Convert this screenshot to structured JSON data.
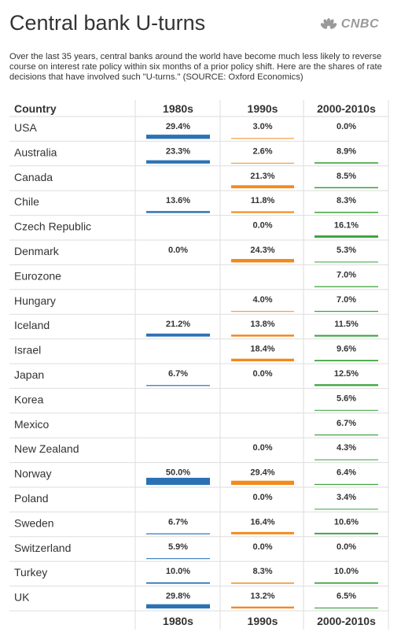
{
  "header": {
    "title": "Central bank U-turns",
    "subtitle": "Over the last 35 years, central banks around the world have become much less likely to reverse course on interest rate policy within six months of a prior policy shift. Here are the shares of rate decisions that have involved such \"U-turns.\" (SOURCE: Oxford Economics)",
    "logo": "CNBC"
  },
  "colors": {
    "c1980s": "#2b72b5",
    "c1990s": "#f28a1c",
    "c2000s": "#3aa33a"
  },
  "chart_data": {
    "type": "table",
    "columns": [
      "Country",
      "1980s",
      "1990s",
      "2000-2010s"
    ],
    "footer": [
      "1980s",
      "1990s",
      "2000-2010s"
    ],
    "unit": "%",
    "rows": [
      {
        "country": "USA",
        "v1980s": 29.4,
        "v1990s": 3.0,
        "v2000s": 0.0
      },
      {
        "country": "Australia",
        "v1980s": 23.3,
        "v1990s": 2.6,
        "v2000s": 8.9
      },
      {
        "country": "Canada",
        "v1980s": null,
        "v1990s": 21.3,
        "v2000s": 8.5
      },
      {
        "country": "Chile",
        "v1980s": 13.6,
        "v1990s": 11.8,
        "v2000s": 8.3
      },
      {
        "country": "Czech Republic",
        "v1980s": null,
        "v1990s": 0.0,
        "v2000s": 16.1
      },
      {
        "country": "Denmark",
        "v1980s": 0.0,
        "v1990s": 24.3,
        "v2000s": 5.3
      },
      {
        "country": "Eurozone",
        "v1980s": null,
        "v1990s": null,
        "v2000s": 7.0
      },
      {
        "country": "Hungary",
        "v1980s": null,
        "v1990s": 4.0,
        "v2000s": 7.0
      },
      {
        "country": "Iceland",
        "v1980s": 21.2,
        "v1990s": 13.8,
        "v2000s": 11.5
      },
      {
        "country": "Israel",
        "v1980s": null,
        "v1990s": 18.4,
        "v2000s": 9.6
      },
      {
        "country": "Japan",
        "v1980s": 6.7,
        "v1990s": 0.0,
        "v2000s": 12.5
      },
      {
        "country": "Korea",
        "v1980s": null,
        "v1990s": null,
        "v2000s": 5.6
      },
      {
        "country": "Mexico",
        "v1980s": null,
        "v1990s": null,
        "v2000s": 6.7
      },
      {
        "country": "New Zealand",
        "v1980s": null,
        "v1990s": 0.0,
        "v2000s": 4.3
      },
      {
        "country": "Norway",
        "v1980s": 50.0,
        "v1990s": 29.4,
        "v2000s": 6.4
      },
      {
        "country": "Poland",
        "v1980s": null,
        "v1990s": 0.0,
        "v2000s": 3.4
      },
      {
        "country": "Sweden",
        "v1980s": 6.7,
        "v1990s": 16.4,
        "v2000s": 10.6
      },
      {
        "country": "Switzerland",
        "v1980s": 5.9,
        "v1990s": 0.0,
        "v2000s": 0.0
      },
      {
        "country": "Turkey",
        "v1980s": 10.0,
        "v1990s": 8.3,
        "v2000s": 10.0
      },
      {
        "country": "UK",
        "v1980s": 29.8,
        "v1990s": 13.2,
        "v2000s": 6.5
      }
    ]
  }
}
